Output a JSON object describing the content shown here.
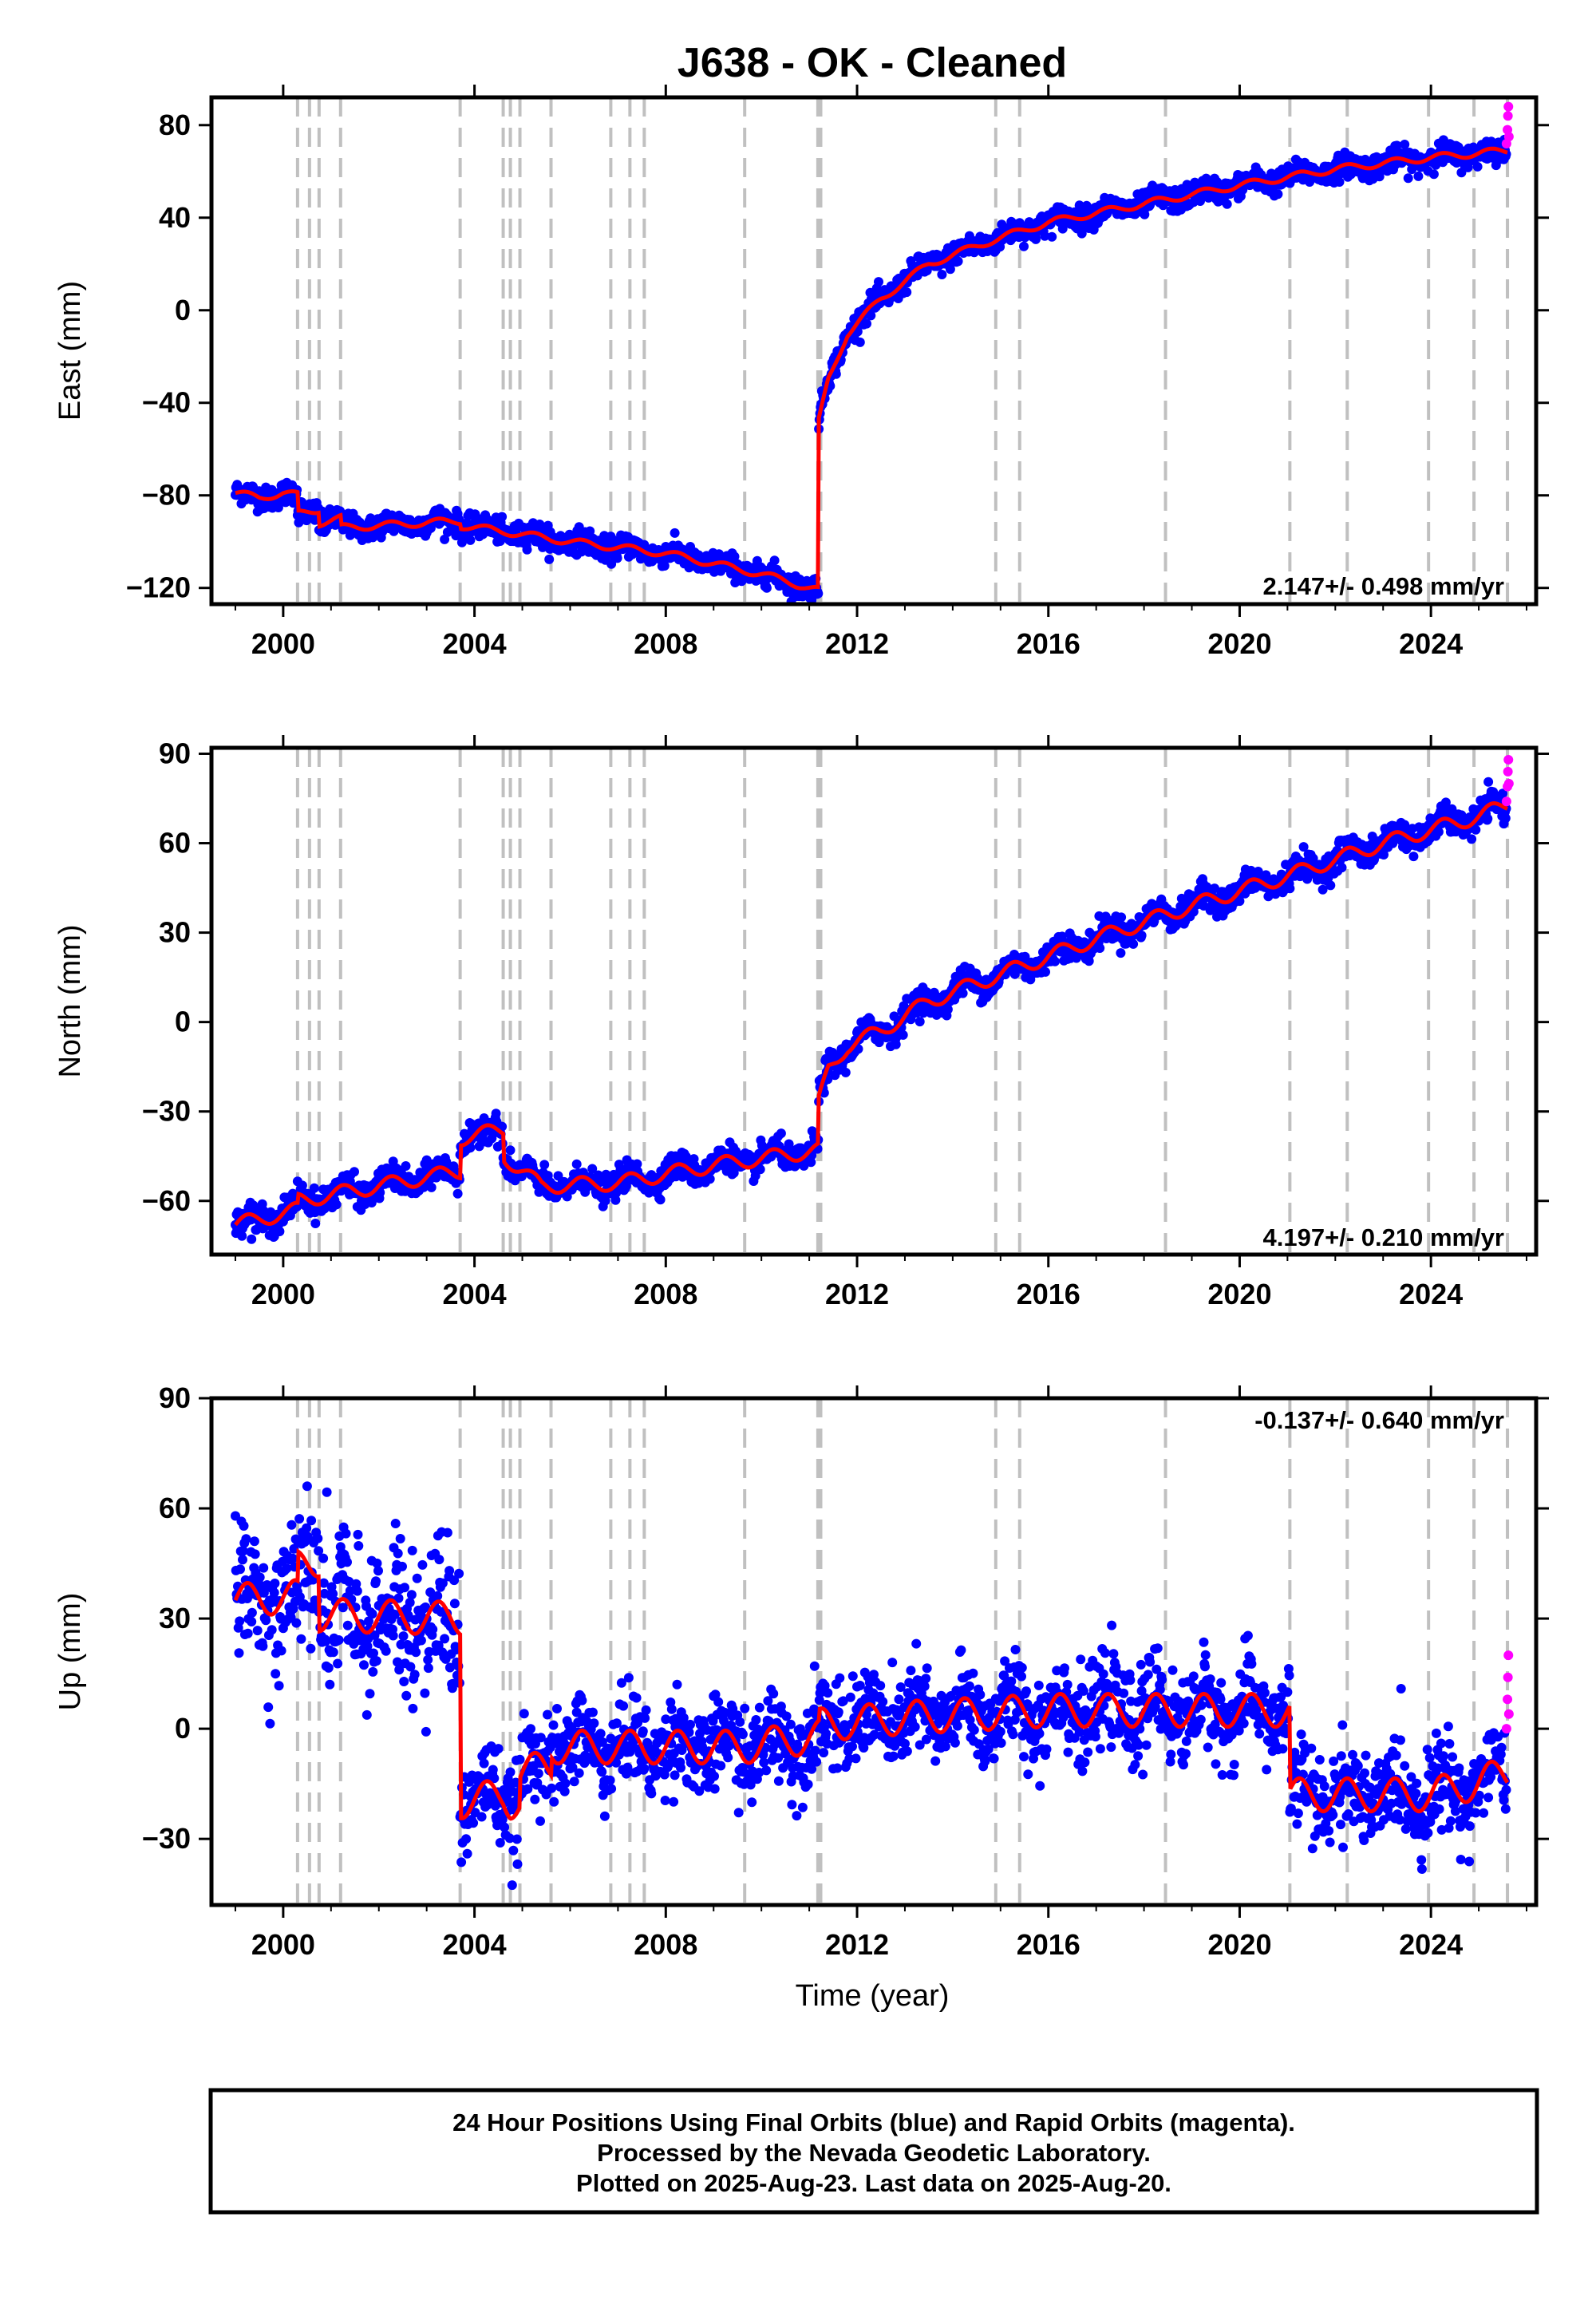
{
  "title": "J638  - OK - Cleaned",
  "xlabel": "Time (year)",
  "colors": {
    "final_orbit_points": "#0000ff",
    "rapid_orbit_points": "#ff00ff",
    "model_line": "#ff0000",
    "event_lines": "#c0c0c0"
  },
  "footer": {
    "line1": "24 Hour Positions Using Final Orbits (blue) and Rapid Orbits (magenta).",
    "line2": "Processed by the Nevada Geodetic Laboratory.",
    "line3": "Plotted on 2025-Aug-23. Last data on 2025-Aug-20."
  },
  "chart_data": [
    {
      "type": "scatter",
      "component": "east",
      "ylabel": "East (mm)",
      "xlim": [
        1998.5,
        2026.2
      ],
      "ylim": [
        -127,
        92
      ],
      "xticks": [
        2000,
        2004,
        2008,
        2012,
        2016,
        2020,
        2024
      ],
      "yticks": [
        -120,
        -80,
        -40,
        0,
        40,
        80
      ],
      "rate_label": "2.147+/- 0.498 mm/yr",
      "event_lines_decimal_year": [
        2000.3,
        2000.55,
        2000.75,
        2001.2,
        2003.7,
        2004.6,
        2004.75,
        2004.95,
        2005.6,
        2006.85,
        2007.25,
        2007.55,
        2009.65,
        2011.18,
        2011.24,
        2014.9,
        2015.4,
        2018.45,
        2021.05,
        2022.25,
        2023.95,
        2024.9,
        2025.6
      ],
      "model_series": [
        {
          "x": 1999.0,
          "y": -79
        },
        {
          "x": 1999.5,
          "y": -81
        },
        {
          "x": 2000.0,
          "y": -79
        },
        {
          "x": 2000.3,
          "y": -80
        },
        {
          "x": 2000.3,
          "y": -88
        },
        {
          "x": 2000.75,
          "y": -86
        },
        {
          "x": 2000.75,
          "y": -92
        },
        {
          "x": 2001.2,
          "y": -90
        },
        {
          "x": 2001.2,
          "y": -94
        },
        {
          "x": 2003.7,
          "y": -91
        },
        {
          "x": 2003.7,
          "y": -93
        },
        {
          "x": 2004.75,
          "y": -96
        },
        {
          "x": 2006.0,
          "y": -100
        },
        {
          "x": 2008.0,
          "y": -105
        },
        {
          "x": 2010.0,
          "y": -114
        },
        {
          "x": 2011.19,
          "y": -121
        },
        {
          "x": 2011.2,
          "y": -48
        },
        {
          "x": 2011.4,
          "y": -30
        },
        {
          "x": 2011.8,
          "y": -10
        },
        {
          "x": 2012.5,
          "y": 5
        },
        {
          "x": 2013.5,
          "y": 20
        },
        {
          "x": 2014.8,
          "y": 30
        },
        {
          "x": 2016.0,
          "y": 38
        },
        {
          "x": 2018.0,
          "y": 46
        },
        {
          "x": 2020.0,
          "y": 54
        },
        {
          "x": 2022.0,
          "y": 61
        },
        {
          "x": 2024.0,
          "y": 66
        },
        {
          "x": 2025.6,
          "y": 69
        }
      ],
      "rapid_points": [
        {
          "x": 2025.58,
          "y": 72
        },
        {
          "x": 2025.6,
          "y": 78
        },
        {
          "x": 2025.61,
          "y": 84
        },
        {
          "x": 2025.62,
          "y": 88
        },
        {
          "x": 2025.63,
          "y": 75
        }
      ],
      "seasonal_amplitude_mm": 1.5,
      "scatter_mm": 2.5
    },
    {
      "type": "scatter",
      "component": "north",
      "ylabel": "North (mm)",
      "xlim": [
        1998.5,
        2026.2
      ],
      "ylim": [
        -78,
        92
      ],
      "xticks": [
        2000,
        2004,
        2008,
        2012,
        2016,
        2020,
        2024
      ],
      "yticks": [
        -60,
        -30,
        0,
        30,
        60,
        90
      ],
      "rate_label": "4.197+/- 0.210 mm/yr",
      "event_lines_decimal_year": [
        2000.3,
        2000.55,
        2000.75,
        2001.2,
        2003.7,
        2004.6,
        2004.75,
        2004.95,
        2005.6,
        2006.85,
        2007.25,
        2007.55,
        2009.65,
        2011.18,
        2011.24,
        2014.9,
        2015.4,
        2018.45,
        2021.05,
        2022.25,
        2023.95,
        2024.9,
        2025.6
      ],
      "model_series": [
        {
          "x": 1999.0,
          "y": -68
        },
        {
          "x": 2000.3,
          "y": -63
        },
        {
          "x": 2000.3,
          "y": -60
        },
        {
          "x": 2003.0,
          "y": -52
        },
        {
          "x": 2003.7,
          "y": -50
        },
        {
          "x": 2003.7,
          "y": -39
        },
        {
          "x": 2004.6,
          "y": -36
        },
        {
          "x": 2004.6,
          "y": -45
        },
        {
          "x": 2005.4,
          "y": -55
        },
        {
          "x": 2007.0,
          "y": -54
        },
        {
          "x": 2009.0,
          "y": -48
        },
        {
          "x": 2011.19,
          "y": -43
        },
        {
          "x": 2011.2,
          "y": -27
        },
        {
          "x": 2011.4,
          "y": -16
        },
        {
          "x": 2011.8,
          "y": -8
        },
        {
          "x": 2012.5,
          "y": -3
        },
        {
          "x": 2013.5,
          "y": 7
        },
        {
          "x": 2015.0,
          "y": 16
        },
        {
          "x": 2017.0,
          "y": 28
        },
        {
          "x": 2019.0,
          "y": 39
        },
        {
          "x": 2021.0,
          "y": 49
        },
        {
          "x": 2023.0,
          "y": 60
        },
        {
          "x": 2025.0,
          "y": 69
        },
        {
          "x": 2025.6,
          "y": 73
        }
      ],
      "rapid_points": [
        {
          "x": 2025.58,
          "y": 74
        },
        {
          "x": 2025.6,
          "y": 79
        },
        {
          "x": 2025.61,
          "y": 84
        },
        {
          "x": 2025.62,
          "y": 88
        },
        {
          "x": 2025.63,
          "y": 80
        }
      ],
      "seasonal_amplitude_mm": 2.5,
      "scatter_mm": 2.2
    },
    {
      "type": "scatter",
      "component": "up",
      "ylabel": "Up (mm)",
      "xlim": [
        1998.5,
        2026.2
      ],
      "ylim": [
        -48,
        90
      ],
      "xticks": [
        2000,
        2004,
        2008,
        2012,
        2016,
        2020,
        2024
      ],
      "yticks": [
        -30,
        0,
        30,
        60,
        90
      ],
      "rate_label": "-0.137+/- 0.640 mm/yr",
      "event_lines_decimal_year": [
        2000.3,
        2000.55,
        2000.75,
        2001.2,
        2003.7,
        2004.6,
        2004.75,
        2004.95,
        2005.6,
        2006.85,
        2007.25,
        2007.55,
        2009.65,
        2011.18,
        2011.24,
        2014.9,
        2015.4,
        2018.45,
        2021.05,
        2022.25,
        2023.95,
        2024.9,
        2025.6
      ],
      "model_series": [
        {
          "x": 1999.0,
          "y": 35
        },
        {
          "x": 2000.3,
          "y": 36
        },
        {
          "x": 2000.3,
          "y": 44
        },
        {
          "x": 2000.75,
          "y": 46
        },
        {
          "x": 2000.75,
          "y": 31
        },
        {
          "x": 2003.7,
          "y": 30
        },
        {
          "x": 2003.7,
          "y": -20
        },
        {
          "x": 2004.6,
          "y": -18
        },
        {
          "x": 2004.75,
          "y": -20
        },
        {
          "x": 2004.95,
          "y": -20
        },
        {
          "x": 2004.95,
          "y": -12
        },
        {
          "x": 2005.6,
          "y": -10
        },
        {
          "x": 2005.6,
          "y": -5
        },
        {
          "x": 2009.65,
          "y": -5
        },
        {
          "x": 2011.2,
          "y": -2
        },
        {
          "x": 2011.2,
          "y": 1
        },
        {
          "x": 2013.0,
          "y": 3
        },
        {
          "x": 2016.0,
          "y": 5
        },
        {
          "x": 2021.05,
          "y": 5
        },
        {
          "x": 2021.05,
          "y": -18
        },
        {
          "x": 2023.95,
          "y": -18
        },
        {
          "x": 2024.9,
          "y": -15
        },
        {
          "x": 2025.6,
          "y": -12
        }
      ],
      "rapid_points": [
        {
          "x": 2025.58,
          "y": 0
        },
        {
          "x": 2025.6,
          "y": 8
        },
        {
          "x": 2025.61,
          "y": 14
        },
        {
          "x": 2025.62,
          "y": 20
        },
        {
          "x": 2025.63,
          "y": 4
        }
      ],
      "seasonal_amplitude_mm": 4.5,
      "scatter_mm": 6.0
    }
  ]
}
